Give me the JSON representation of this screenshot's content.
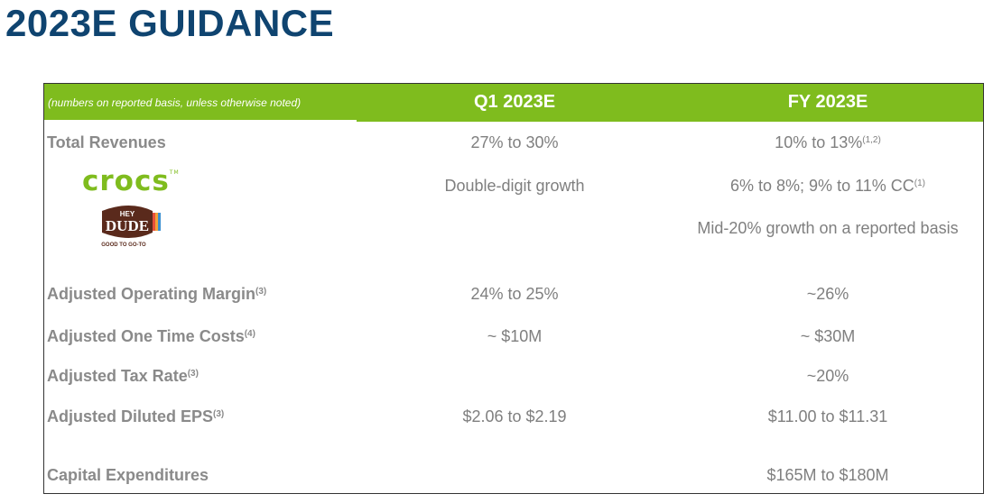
{
  "title": "2023E GUIDANCE",
  "header": {
    "note": "(numbers on reported basis, unless otherwise noted)",
    "col1": "Q1 2023E",
    "col2": "FY 2023E"
  },
  "brands": {
    "crocs_logo_text": "crocs",
    "heydude_logo_text": [
      "HEY",
      "DUDE",
      "GOOD TO GO-TO"
    ]
  },
  "rows": {
    "total_revenues": {
      "label": "Total Revenues",
      "q1": "27% to 30%",
      "fy": "10% to 13%",
      "fy_note": "(1,2)"
    },
    "crocs": {
      "q1": "Double-digit growth",
      "fy": "6% to 8%; 9% to 11% CC",
      "fy_note": "(1)"
    },
    "heydude": {
      "fy": "Mid-20% growth on a reported basis"
    },
    "adj_op_margin": {
      "label": "Adjusted Operating Margin",
      "label_note": "(3)",
      "q1": "24% to 25%",
      "fy": "~26%"
    },
    "adj_one_time": {
      "label": "Adjusted One Time Costs",
      "label_note": "(4)",
      "q1": "~ $10M",
      "fy": "~ $30M"
    },
    "adj_tax": {
      "label": "Adjusted Tax Rate",
      "label_note": "(3)",
      "fy": "~20%"
    },
    "adj_eps": {
      "label": "Adjusted Diluted EPS",
      "label_note": "(3)",
      "q1": "$2.06 to $2.19",
      "fy": "$11.00 to $11.31"
    },
    "capex": {
      "label": "Capital Expenditures",
      "fy": "$165M to $180M"
    }
  },
  "colors": {
    "title": "#0f4470",
    "header": "#7fbc1e",
    "label": "#8a8a8a",
    "value": "#7f7f7f"
  }
}
